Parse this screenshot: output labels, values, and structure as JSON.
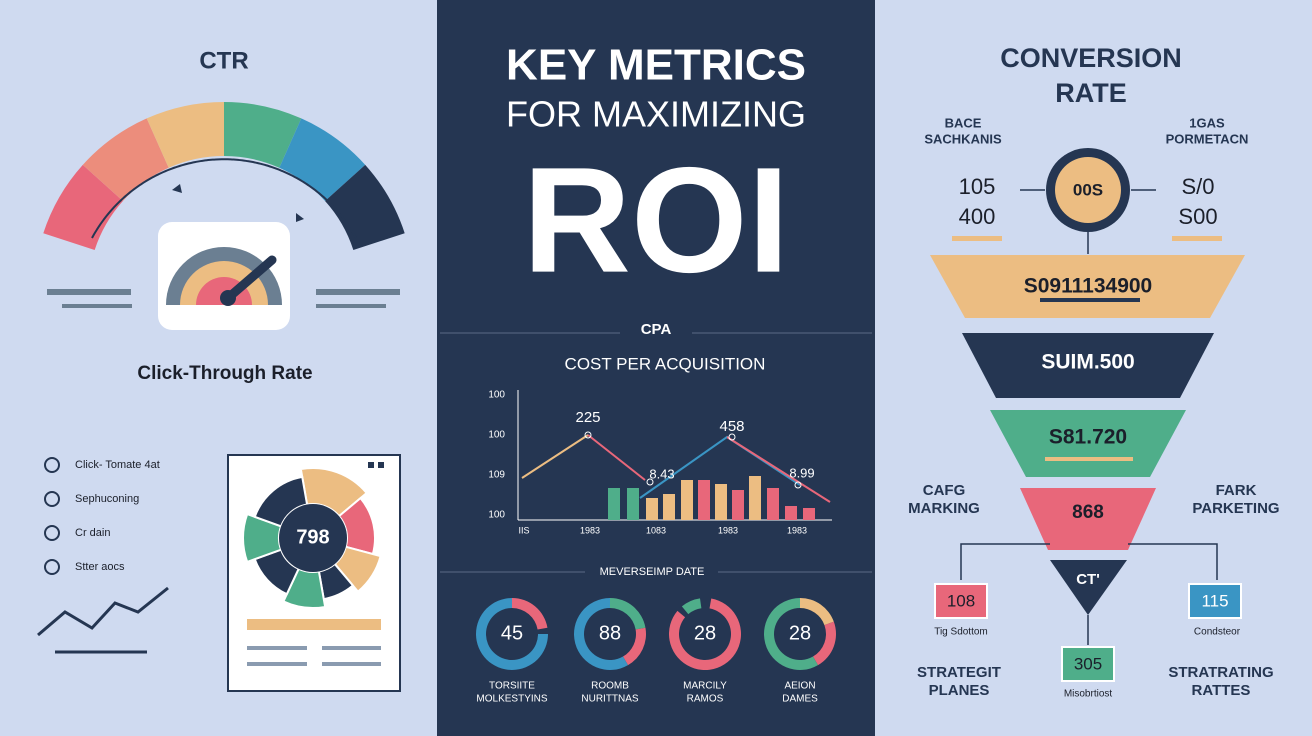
{
  "left": {
    "title": "CTR",
    "subtitle": "Click-Through Rate",
    "list": [
      "Click- Tomate 4at",
      "Sephuconing",
      "Cr dain",
      "Stter aocs"
    ],
    "donut_value": "798"
  },
  "center": {
    "title": [
      "KEY METRICS",
      "FOR MAXIMIZING",
      "ROI"
    ],
    "section": "CPA",
    "subtitle": "COST PER ACQUISITION",
    "chart": {
      "y_labels": [
        "100",
        "100",
        "109",
        "100"
      ],
      "x_labels": [
        "IIS",
        "1983",
        "1083",
        "1983",
        "1983"
      ],
      "point_labels": [
        "225",
        "458",
        "8.43",
        "8.99"
      ]
    },
    "donut_section": "MEVERSEIMP DATE",
    "donuts": [
      {
        "value": "45",
        "label": [
          "TORSIITE",
          "MOLKESTYINS"
        ]
      },
      {
        "value": "88",
        "label": [
          "ROOMB",
          "NURITTNAS"
        ]
      },
      {
        "value": "28",
        "label": [
          "MARCILY",
          "RAMOS"
        ]
      },
      {
        "value": "28",
        "label": [
          "AEION",
          "DAMES"
        ]
      }
    ]
  },
  "right": {
    "title": [
      "CONVERSION",
      "RATE"
    ],
    "left_caption": [
      "BACE",
      "SACHKANIS"
    ],
    "right_caption": [
      "1GAS",
      "PORMETACN"
    ],
    "left_numbers": [
      "105",
      "400"
    ],
    "right_numbers": [
      "S/0",
      "S00"
    ],
    "circle": "00S",
    "funnel": [
      "S0911134900",
      "SUIM.500",
      "S81.720",
      "868",
      "CT'"
    ],
    "side_left": [
      "CAFG",
      "MARKING"
    ],
    "side_right": [
      "FARK",
      "PARKETING"
    ],
    "boxes": [
      {
        "value": "108",
        "caption": "Tig Sdottom"
      },
      {
        "value": "305",
        "caption": "Misobrtiost"
      },
      {
        "value": "115",
        "caption": "Condsteor"
      }
    ],
    "bottom_left": [
      "STRATEGIT",
      "PLANES"
    ],
    "bottom_right": [
      "STRATRATING",
      "RATTES"
    ]
  }
}
